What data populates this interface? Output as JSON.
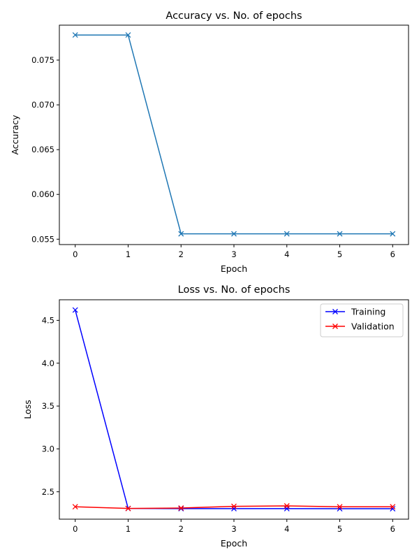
{
  "chart_data": [
    {
      "type": "line",
      "title": "Accuracy vs. No. of epochs",
      "xlabel": "Epoch",
      "ylabel": "Accuracy",
      "x": [
        0,
        1,
        2,
        3,
        4,
        5,
        6
      ],
      "xlim": [
        -0.3,
        6.3
      ],
      "ylim": [
        0.0544,
        0.0789
      ],
      "xticks": [
        0,
        1,
        2,
        3,
        4,
        5,
        6
      ],
      "yticks": [
        0.055,
        0.06,
        0.065,
        0.07,
        0.075
      ],
      "ytick_labels": [
        "0.055",
        "0.060",
        "0.065",
        "0.070",
        "0.075"
      ],
      "grid": false,
      "series": [
        {
          "color": "#1f77b4",
          "marker": "x",
          "values": [
            0.0778,
            0.0778,
            0.0556,
            0.0556,
            0.0556,
            0.0556,
            0.0556
          ]
        }
      ]
    },
    {
      "type": "line",
      "title": "Loss vs. No. of epochs",
      "xlabel": "Epoch",
      "ylabel": "Loss",
      "x": [
        0,
        1,
        2,
        3,
        4,
        5,
        6
      ],
      "xlim": [
        -0.3,
        6.3
      ],
      "ylim": [
        2.18,
        4.74
      ],
      "xticks": [
        0,
        1,
        2,
        3,
        4,
        5,
        6
      ],
      "yticks": [
        2.5,
        3.0,
        3.5,
        4.0,
        4.5
      ],
      "ytick_labels": [
        "2.5",
        "3.0",
        "3.5",
        "4.0",
        "4.5"
      ],
      "grid": false,
      "legend": "top-right",
      "series": [
        {
          "name": "Training",
          "color": "#0000ff",
          "marker": "x",
          "values": [
            4.62,
            2.305,
            2.303,
            2.303,
            2.303,
            2.302,
            2.302
          ]
        },
        {
          "name": "Validation",
          "color": "#ff0000",
          "marker": "x",
          "values": [
            2.325,
            2.305,
            2.31,
            2.33,
            2.335,
            2.325,
            2.325
          ]
        }
      ]
    }
  ]
}
